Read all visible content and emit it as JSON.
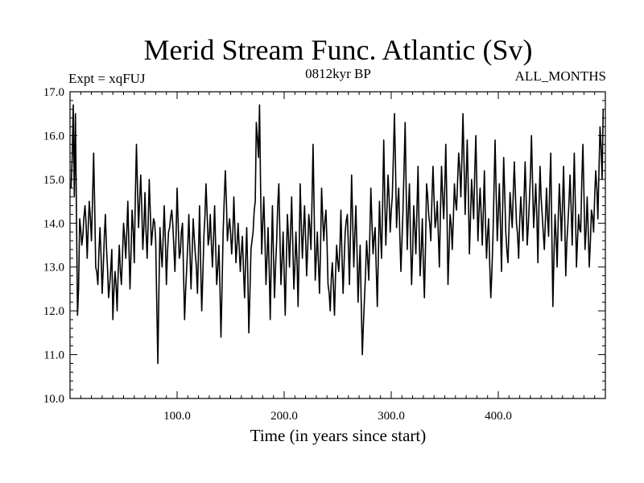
{
  "chart_data": {
    "type": "line",
    "title": "Merid Stream Func. Atlantic (Sv)",
    "subtitle_left": "Expt = xqFUJ",
    "subtitle_center": "0812kyr BP",
    "subtitle_right": "ALL_MONTHS",
    "xlabel": "Time (in years since start)",
    "ylabel": "",
    "xlim": [
      0,
      500
    ],
    "ylim": [
      10.0,
      17.0
    ],
    "xticks": [
      100,
      200,
      300,
      400
    ],
    "xtick_labels": [
      "100.0",
      "200.0",
      "300.0",
      "400.0"
    ],
    "yticks": [
      10,
      11,
      12,
      13,
      14,
      15,
      16,
      17
    ],
    "ytick_labels": [
      "10.0",
      "11.0",
      "12.0",
      "13.0",
      "14.0",
      "15.0",
      "16.0",
      "17.0"
    ],
    "series": [
      {
        "name": "Merid Stream Func. Atlantic",
        "x_start": 1,
        "x_step": 1,
        "anchors": [
          [
            1,
            14.8
          ],
          [
            2,
            15.5
          ],
          [
            3,
            16.7
          ],
          [
            4,
            14.6
          ],
          [
            5,
            16.5
          ],
          [
            6,
            14.2
          ],
          [
            7,
            11.9
          ],
          [
            8,
            12.5
          ],
          [
            9,
            14.1
          ],
          [
            11,
            13.5
          ],
          [
            14,
            14.4
          ],
          [
            16,
            13.2
          ],
          [
            18,
            14.5
          ],
          [
            20,
            13.6
          ],
          [
            22,
            15.6
          ],
          [
            24,
            13.0
          ],
          [
            26,
            12.6
          ],
          [
            28,
            13.9
          ],
          [
            30,
            12.4
          ],
          [
            33,
            14.2
          ],
          [
            36,
            12.3
          ],
          [
            39,
            13.4
          ],
          [
            40,
            11.8
          ],
          [
            42,
            12.9
          ],
          [
            44,
            12.0
          ],
          [
            46,
            13.5
          ],
          [
            48,
            12.6
          ],
          [
            50,
            14.0
          ],
          [
            52,
            13.2
          ],
          [
            54,
            14.5
          ],
          [
            56,
            12.5
          ],
          [
            58,
            14.3
          ],
          [
            60,
            13.1
          ],
          [
            62,
            15.8
          ],
          [
            64,
            13.9
          ],
          [
            66,
            15.1
          ],
          [
            68,
            13.4
          ],
          [
            70,
            14.7
          ],
          [
            72,
            13.2
          ],
          [
            74,
            15.0
          ],
          [
            76,
            13.5
          ],
          [
            78,
            14.1
          ],
          [
            80,
            13.6
          ],
          [
            82,
            10.8
          ],
          [
            84,
            13.9
          ],
          [
            86,
            13.0
          ],
          [
            88,
            14.4
          ],
          [
            90,
            12.6
          ],
          [
            92,
            13.8
          ],
          [
            95,
            14.3
          ],
          [
            98,
            12.9
          ],
          [
            100,
            14.8
          ],
          [
            102,
            13.2
          ],
          [
            105,
            14.0
          ],
          [
            107,
            11.8
          ],
          [
            109,
            13.0
          ],
          [
            111,
            14.2
          ],
          [
            113,
            12.5
          ],
          [
            115,
            14.1
          ],
          [
            117,
            13.3
          ],
          [
            119,
            12.4
          ],
          [
            121,
            14.4
          ],
          [
            123,
            12.0
          ],
          [
            125,
            13.7
          ],
          [
            127,
            14.9
          ],
          [
            129,
            13.5
          ],
          [
            131,
            14.2
          ],
          [
            133,
            13.0
          ],
          [
            135,
            14.4
          ],
          [
            137,
            12.6
          ],
          [
            139,
            13.5
          ],
          [
            141,
            11.4
          ],
          [
            143,
            13.8
          ],
          [
            145,
            15.2
          ],
          [
            147,
            13.6
          ],
          [
            149,
            14.1
          ],
          [
            151,
            13.3
          ],
          [
            153,
            14.6
          ],
          [
            155,
            13.1
          ],
          [
            157,
            14.0
          ],
          [
            159,
            12.9
          ],
          [
            161,
            13.7
          ],
          [
            163,
            12.3
          ],
          [
            165,
            13.9
          ],
          [
            167,
            11.5
          ],
          [
            169,
            13.4
          ],
          [
            171,
            13.8
          ],
          [
            173,
            14.5
          ],
          [
            174,
            16.3
          ],
          [
            176,
            15.5
          ],
          [
            177,
            16.7
          ],
          [
            179,
            13.3
          ],
          [
            181,
            14.6
          ],
          [
            183,
            12.6
          ],
          [
            185,
            13.9
          ],
          [
            187,
            11.8
          ],
          [
            189,
            14.4
          ],
          [
            191,
            12.3
          ],
          [
            193,
            13.6
          ],
          [
            195,
            14.9
          ],
          [
            197,
            12.6
          ],
          [
            199,
            13.8
          ],
          [
            201,
            11.9
          ],
          [
            203,
            14.2
          ],
          [
            205,
            13.0
          ],
          [
            207,
            14.6
          ],
          [
            209,
            12.5
          ],
          [
            211,
            13.8
          ],
          [
            213,
            12.1
          ],
          [
            215,
            14.9
          ],
          [
            217,
            13.2
          ],
          [
            219,
            14.4
          ],
          [
            221,
            12.8
          ],
          [
            223,
            14.2
          ],
          [
            225,
            13.4
          ],
          [
            227,
            15.8
          ],
          [
            229,
            12.7
          ],
          [
            231,
            13.8
          ],
          [
            233,
            12.4
          ],
          [
            235,
            14.8
          ],
          [
            237,
            13.6
          ],
          [
            239,
            14.3
          ],
          [
            241,
            12.6
          ],
          [
            243,
            12.0
          ],
          [
            245,
            13.1
          ],
          [
            247,
            11.9
          ],
          [
            249,
            13.5
          ],
          [
            251,
            12.9
          ],
          [
            253,
            14.3
          ],
          [
            255,
            12.4
          ],
          [
            257,
            13.8
          ],
          [
            259,
            14.2
          ],
          [
            261,
            12.6
          ],
          [
            263,
            15.1
          ],
          [
            265,
            13.0
          ],
          [
            267,
            14.4
          ],
          [
            269,
            12.2
          ],
          [
            271,
            13.5
          ],
          [
            273,
            11.0
          ],
          [
            275,
            12.3
          ],
          [
            277,
            13.6
          ],
          [
            279,
            12.7
          ],
          [
            281,
            14.8
          ],
          [
            283,
            13.3
          ],
          [
            285,
            13.9
          ],
          [
            287,
            12.1
          ],
          [
            289,
            14.5
          ],
          [
            291,
            13.2
          ],
          [
            293,
            15.9
          ],
          [
            295,
            13.5
          ],
          [
            297,
            15.1
          ],
          [
            299,
            13.8
          ],
          [
            301,
            14.6
          ],
          [
            303,
            16.5
          ],
          [
            305,
            13.9
          ],
          [
            307,
            14.8
          ],
          [
            309,
            12.9
          ],
          [
            311,
            14.3
          ],
          [
            313,
            16.3
          ],
          [
            315,
            13.4
          ],
          [
            317,
            14.9
          ],
          [
            319,
            12.6
          ],
          [
            321,
            14.4
          ],
          [
            323,
            13.3
          ],
          [
            325,
            15.3
          ],
          [
            327,
            12.8
          ],
          [
            329,
            14.1
          ],
          [
            331,
            12.3
          ],
          [
            333,
            14.9
          ],
          [
            335,
            14.2
          ],
          [
            337,
            13.6
          ],
          [
            339,
            15.3
          ],
          [
            341,
            13.9
          ],
          [
            343,
            14.5
          ],
          [
            345,
            13.0
          ],
          [
            347,
            15.3
          ],
          [
            349,
            14.1
          ],
          [
            351,
            15.8
          ],
          [
            353,
            12.6
          ],
          [
            355,
            14.2
          ],
          [
            357,
            13.4
          ],
          [
            359,
            14.9
          ],
          [
            361,
            14.3
          ],
          [
            363,
            15.6
          ],
          [
            365,
            14.6
          ],
          [
            367,
            16.5
          ],
          [
            369,
            14.2
          ],
          [
            371,
            15.9
          ],
          [
            373,
            13.3
          ],
          [
            375,
            15.0
          ],
          [
            377,
            14.1
          ],
          [
            379,
            16.0
          ],
          [
            381,
            13.6
          ],
          [
            383,
            14.8
          ],
          [
            385,
            13.5
          ],
          [
            387,
            15.2
          ],
          [
            389,
            13.2
          ],
          [
            391,
            14.1
          ],
          [
            393,
            12.3
          ],
          [
            395,
            13.7
          ],
          [
            397,
            15.9
          ],
          [
            399,
            13.6
          ],
          [
            401,
            14.9
          ],
          [
            403,
            12.9
          ],
          [
            405,
            15.5
          ],
          [
            407,
            13.8
          ],
          [
            409,
            13.1
          ],
          [
            411,
            14.7
          ],
          [
            413,
            13.9
          ],
          [
            415,
            15.4
          ],
          [
            417,
            14.0
          ],
          [
            419,
            13.2
          ],
          [
            421,
            14.6
          ],
          [
            423,
            13.6
          ],
          [
            425,
            15.4
          ],
          [
            427,
            13.5
          ],
          [
            429,
            14.5
          ],
          [
            431,
            16.0
          ],
          [
            433,
            13.9
          ],
          [
            435,
            14.9
          ],
          [
            437,
            13.1
          ],
          [
            439,
            15.3
          ],
          [
            441,
            14.2
          ],
          [
            443,
            13.4
          ],
          [
            445,
            14.8
          ],
          [
            447,
            13.7
          ],
          [
            449,
            15.6
          ],
          [
            451,
            12.1
          ],
          [
            453,
            14.2
          ],
          [
            455,
            13.0
          ],
          [
            457,
            14.9
          ],
          [
            459,
            13.6
          ],
          [
            461,
            15.3
          ],
          [
            463,
            12.8
          ],
          [
            465,
            14.0
          ],
          [
            467,
            15.1
          ],
          [
            469,
            13.5
          ],
          [
            471,
            15.6
          ],
          [
            473,
            13.0
          ],
          [
            475,
            14.2
          ],
          [
            477,
            13.8
          ],
          [
            479,
            15.8
          ],
          [
            481,
            13.4
          ],
          [
            483,
            14.6
          ],
          [
            485,
            13.0
          ],
          [
            487,
            14.3
          ],
          [
            489,
            13.8
          ],
          [
            491,
            15.2
          ],
          [
            493,
            14.1
          ],
          [
            495,
            16.2
          ],
          [
            497,
            15.0
          ],
          [
            498,
            16.6
          ]
        ]
      }
    ]
  }
}
